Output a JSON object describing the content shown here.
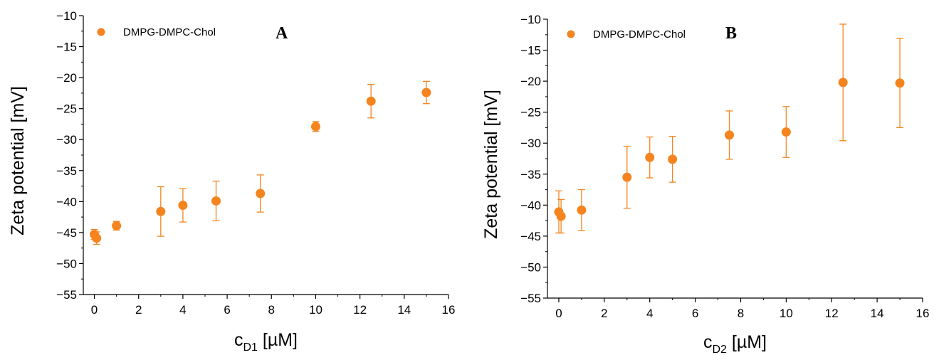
{
  "chart_data": [
    {
      "type": "scatter",
      "panel_label": "A",
      "xlabel_main": "c",
      "xlabel_sub": "D1",
      "xlabel_unit": " [µM]",
      "ylabel": "Zeta potential [mV]",
      "xlim": [
        -0.5,
        16
      ],
      "ylim": [
        -55,
        -10
      ],
      "xticks": [
        0,
        2,
        4,
        6,
        8,
        10,
        12,
        14,
        16
      ],
      "yticks": [
        -10,
        -15,
        -20,
        -25,
        -30,
        -35,
        -40,
        -45,
        -50,
        -55
      ],
      "grid": false,
      "legend_position": "top-left",
      "series": [
        {
          "name": "DMPG-DMPC-Chol",
          "color": "#f5841f",
          "marker": "circle",
          "x": [
            0,
            0.1,
            1,
            3,
            4,
            5.5,
            7.5,
            10,
            12.5,
            15
          ],
          "y": [
            -45.3,
            -45.9,
            -43.9,
            -41.6,
            -40.6,
            -39.9,
            -38.7,
            -27.9,
            -23.8,
            -22.4
          ],
          "error": [
            0.8,
            1.0,
            0.7,
            4.0,
            2.7,
            3.2,
            3.0,
            0.8,
            2.7,
            1.8
          ]
        }
      ]
    },
    {
      "type": "scatter",
      "panel_label": "B",
      "xlabel_main": "c",
      "xlabel_sub": "D2",
      "xlabel_unit": " [µM]",
      "ylabel": "Zeta potential [mV]",
      "xlim": [
        -0.5,
        16
      ],
      "ylim": [
        -55,
        -10
      ],
      "xticks": [
        0,
        2,
        4,
        6,
        8,
        10,
        12,
        14,
        16
      ],
      "yticks": [
        -10,
        -15,
        -20,
        -25,
        -30,
        -35,
        -40,
        -45,
        -50,
        -55
      ],
      "grid": false,
      "legend_position": "top-left",
      "series": [
        {
          "name": "DMPG-DMPC-Chol",
          "color": "#f5841f",
          "marker": "circle",
          "x": [
            0,
            0.1,
            1,
            3,
            4,
            5,
            7.5,
            10,
            12.5,
            15
          ],
          "y": [
            -41.1,
            -41.8,
            -40.8,
            -35.5,
            -32.3,
            -32.6,
            -28.7,
            -28.2,
            -20.2,
            -20.3
          ],
          "error": [
            3.4,
            2.7,
            3.3,
            5.0,
            3.3,
            3.7,
            3.9,
            4.1,
            9.4,
            7.2
          ]
        }
      ]
    }
  ]
}
